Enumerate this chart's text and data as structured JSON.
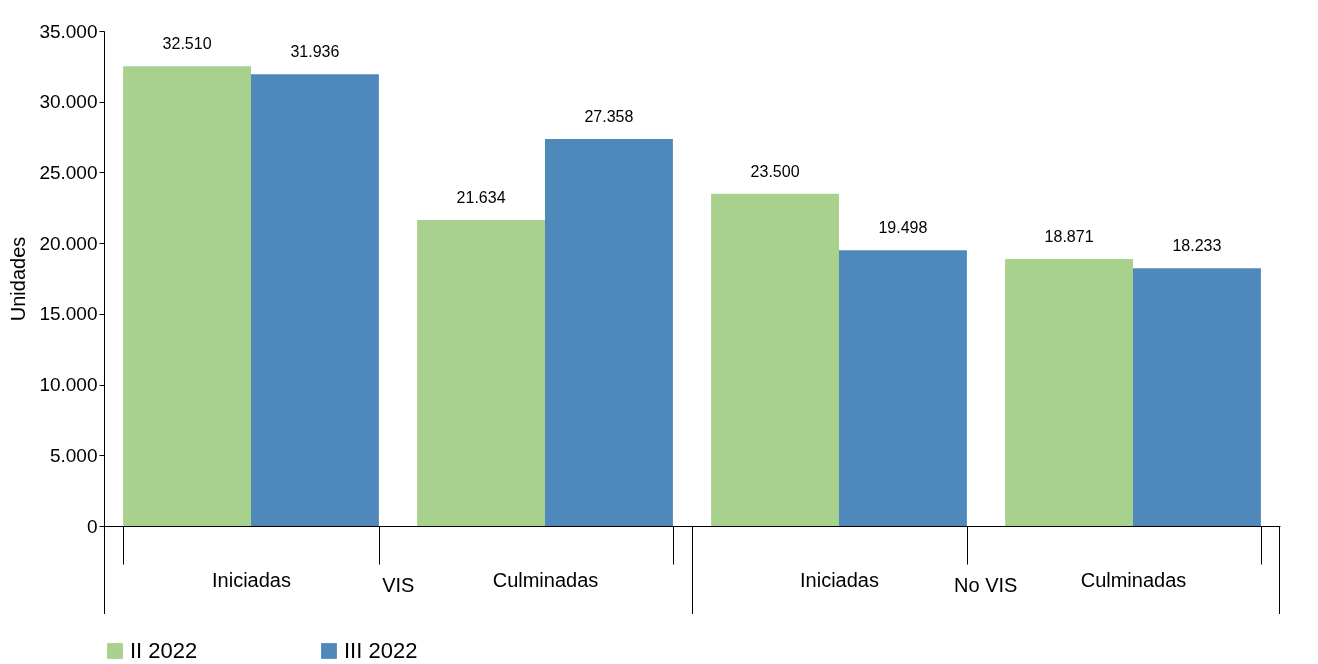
{
  "chart_data": {
    "type": "bar",
    "ylabel": "Unidades",
    "categories": [
      "Iniciadas",
      "Culminadas",
      "Iniciadas",
      "Culminadas"
    ],
    "series": [
      {
        "name": "II 2022",
        "color": "#a9d18e",
        "values": [
          32510,
          21634,
          23500,
          18871
        ],
        "value_labels": [
          "32.510",
          "21.634",
          "23.500",
          "18.871"
        ]
      },
      {
        "name": "III 2022",
        "color": "#4f88bb",
        "values": [
          31936,
          27358,
          19498,
          18233
        ],
        "value_labels": [
          "31.936",
          "27.358",
          "19.498",
          "18.233"
        ]
      }
    ],
    "ylim": [
      0,
      35000
    ],
    "yticks": [
      0,
      {
        "value": 5000,
        "label": "5.000"
      },
      {
        "value": 10000,
        "label": "10.000"
      },
      {
        "value": 15000,
        "label": "15.000"
      },
      {
        "value": 20000,
        "label": "20.000"
      },
      {
        "value": 25000,
        "label": "25.000"
      },
      {
        "value": 30000,
        "label": "30.000"
      },
      {
        "value": 35000,
        "label": "35.000"
      }
    ],
    "legend": "bottom",
    "annotations": [
      "VIS",
      "No VIS"
    ]
  }
}
